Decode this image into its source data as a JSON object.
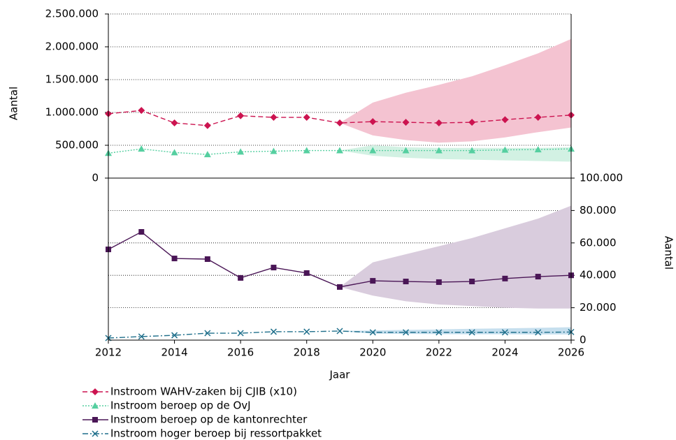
{
  "chart_data": [
    {
      "type": "line",
      "ylabel": "Aantal",
      "x": [
        2012,
        2013,
        2014,
        2015,
        2016,
        2017,
        2018,
        2019,
        2020,
        2021,
        2022,
        2023,
        2024,
        2025,
        2026
      ],
      "xlim": [
        2012,
        2026
      ],
      "ylim": [
        0,
        2500000
      ],
      "yticks": [
        0,
        {
          "value": 500000,
          "label": "500.000"
        },
        {
          "value": 1000000,
          "label": "1.000.000"
        },
        {
          "value": 1500000,
          "label": "1.500.000"
        },
        {
          "value": 2000000,
          "label": "2.000.000"
        },
        {
          "value": 2500000,
          "label": "2.500.000"
        }
      ],
      "grid": true,
      "series": [
        {
          "name": "Instroom WAHV-zaken bij CJIB (x10)",
          "color": "#cc1450",
          "band_color": "#f4c3d1",
          "marker": "diamond",
          "linestyle": "dashed",
          "values": [
            980000,
            1030000,
            840000,
            800000,
            950000,
            925000,
            925000,
            840000,
            860000,
            850000,
            840000,
            850000,
            890000,
            925000,
            960000
          ],
          "band": {
            "lower": [
              null,
              null,
              null,
              null,
              null,
              null,
              null,
              840000,
              650000,
              580000,
              540000,
              560000,
              620000,
              700000,
              770000
            ],
            "upper": [
              null,
              null,
              null,
              null,
              null,
              null,
              null,
              840000,
              1150000,
              1300000,
              1420000,
              1550000,
              1720000,
              1900000,
              2120000
            ]
          }
        },
        {
          "name": "Instroom beroep op de OvJ",
          "color": "#55cfa0",
          "band_color": "#d2f1e3",
          "marker": "triangle",
          "linestyle": "dotted",
          "values": [
            380000,
            445000,
            390000,
            360000,
            400000,
            410000,
            420000,
            420000,
            420000,
            420000,
            420000,
            420000,
            430000,
            435000,
            445000
          ],
          "band": {
            "lower": [
              null,
              null,
              null,
              null,
              null,
              null,
              null,
              420000,
              340000,
              310000,
              290000,
              280000,
              270000,
              260000,
              250000
            ],
            "upper": [
              null,
              null,
              null,
              null,
              null,
              null,
              null,
              420000,
              500000,
              470000,
              460000,
              460000,
              460000,
              460000,
              470000
            ]
          }
        }
      ]
    },
    {
      "type": "line",
      "y2label": "Aantal",
      "xlabel": "Jaar",
      "x": [
        2012,
        2013,
        2014,
        2015,
        2016,
        2017,
        2018,
        2019,
        2020,
        2021,
        2022,
        2023,
        2024,
        2025,
        2026
      ],
      "xlim": [
        2012,
        2026
      ],
      "xticks": [
        2012,
        2014,
        2016,
        2018,
        2020,
        2022,
        2024,
        2026
      ],
      "y2lim": [
        0,
        100000
      ],
      "y2ticks": [
        0,
        {
          "value": 20000,
          "label": "20.000"
        },
        {
          "value": 40000,
          "label": "40.000"
        },
        {
          "value": 60000,
          "label": "60.000"
        },
        {
          "value": 80000,
          "label": "80.000"
        },
        {
          "value": 100000,
          "label": "100.000"
        }
      ],
      "grid": true,
      "series": [
        {
          "name": "Instroom beroep op de kantonrechter",
          "color": "#4a1656",
          "band_color": "#d9ccdd",
          "marker": "square",
          "linestyle": "solid",
          "axis": "y2",
          "values": [
            56000,
            66800,
            50400,
            50000,
            38400,
            44800,
            41400,
            32800,
            36600,
            36200,
            35800,
            36200,
            38000,
            39200,
            40000
          ],
          "band": {
            "lower": [
              null,
              null,
              null,
              null,
              null,
              null,
              null,
              32800,
              27500,
              24000,
              22000,
              21000,
              20000,
              19500,
              19500
            ],
            "upper": [
              null,
              null,
              null,
              null,
              null,
              null,
              null,
              32800,
              48000,
              53000,
              58000,
              63000,
              69000,
              75000,
              83000
            ]
          }
        },
        {
          "name": "Instroom hoger beroep bij ressortpakket",
          "color": "#1f6f8b",
          "band_color": "#c6dfee",
          "marker": "x",
          "linestyle": "dashdot",
          "axis": "y2",
          "values": [
            1300,
            2200,
            3000,
            4300,
            4300,
            5200,
            5200,
            5600,
            4800,
            4800,
            4800,
            4800,
            4800,
            4800,
            5000
          ],
          "band": {
            "lower": [
              null,
              null,
              null,
              null,
              null,
              null,
              null,
              5600,
              4000,
              3800,
              3700,
              3600,
              3600,
              3500,
              3500
            ],
            "upper": [
              null,
              null,
              null,
              null,
              null,
              null,
              null,
              5600,
              6000,
              6300,
              6600,
              7000,
              7300,
              7600,
              8000
            ]
          }
        }
      ]
    }
  ]
}
